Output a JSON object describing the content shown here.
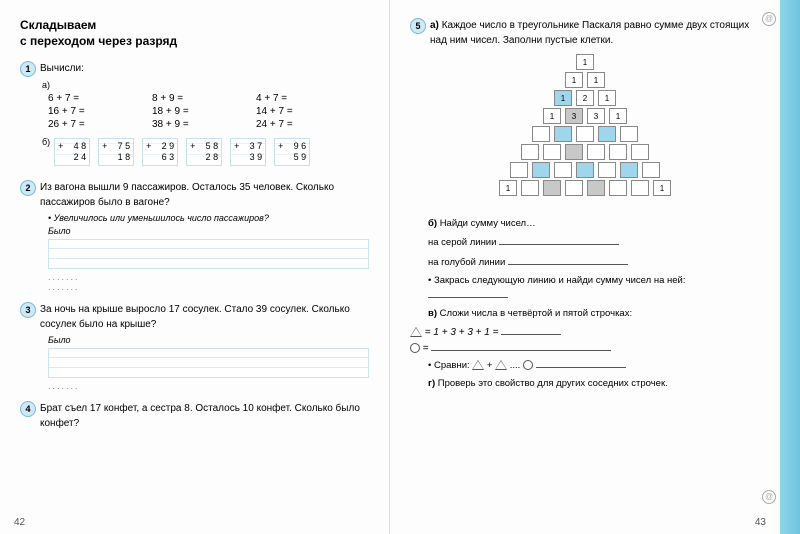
{
  "left": {
    "title_l1": "Складываем",
    "title_l2": "с переходом через разряд",
    "t1": {
      "num": "1",
      "head": "Вычисли:",
      "a_label": "а)",
      "rows": [
        [
          "6 + 7 =",
          "8 + 9 =",
          "4 + 7 ="
        ],
        [
          "16 + 7 =",
          "18 + 9 =",
          "14 + 7 ="
        ],
        [
          "26 + 7 =",
          "38 + 9 =",
          "24 + 7 ="
        ]
      ],
      "b_label": "б)",
      "cols": [
        {
          "top": "4 8",
          "bot": "2 4"
        },
        {
          "top": "7 5",
          "bot": "1 8"
        },
        {
          "top": "2 9",
          "bot": "6 3"
        },
        {
          "top": "5 8",
          "bot": "2 8"
        },
        {
          "top": "3 7",
          "bot": "3 9"
        },
        {
          "top": "9 6",
          "bot": "5 9"
        }
      ]
    },
    "t2": {
      "num": "2",
      "text": "Из вагона вышли 9 пассажиров. Осталось 35 человек. Сколько пассажиров было в вагоне?",
      "hint": "Увеличилось или уменьшилось число пассажиров?",
      "bylo": "Было"
    },
    "t3": {
      "num": "3",
      "text": "За ночь на крыше выросло 17 сосулек. Стало 39 сосулек. Сколько сосулек было на крыше?",
      "bylo": "Было"
    },
    "t4": {
      "num": "4",
      "text": "Брат съел 17 конфет, а сестра 8. Осталось 10 конфет. Сколько было конфет?"
    },
    "pagenum": "42"
  },
  "right": {
    "t5": {
      "num": "5",
      "a_label": "а)",
      "a_text": "Каждое число в треугольнике Паскаля равно сумме двух стоящих над ним чисел. Заполни пустые клетки.",
      "pascal": [
        [
          {
            "v": "1",
            "c": ""
          }
        ],
        [
          {
            "v": "1",
            "c": ""
          },
          {
            "v": "1",
            "c": ""
          }
        ],
        [
          {
            "v": "1",
            "c": "blue"
          },
          {
            "v": "2",
            "c": ""
          },
          {
            "v": "1",
            "c": ""
          }
        ],
        [
          {
            "v": "1",
            "c": ""
          },
          {
            "v": "3",
            "c": "gray"
          },
          {
            "v": "3",
            "c": ""
          },
          {
            "v": "1",
            "c": ""
          }
        ],
        [
          {
            "v": "",
            "c": ""
          },
          {
            "v": "",
            "c": "blue"
          },
          {
            "v": "",
            "c": ""
          },
          {
            "v": "",
            "c": "blue"
          },
          {
            "v": "",
            "c": ""
          }
        ],
        [
          {
            "v": "",
            "c": ""
          },
          {
            "v": "",
            "c": ""
          },
          {
            "v": "",
            "c": "gray"
          },
          {
            "v": "",
            "c": ""
          },
          {
            "v": "",
            "c": ""
          },
          {
            "v": "",
            "c": ""
          }
        ],
        [
          {
            "v": "",
            "c": ""
          },
          {
            "v": "",
            "c": "blue"
          },
          {
            "v": "",
            "c": ""
          },
          {
            "v": "",
            "c": "blue"
          },
          {
            "v": "",
            "c": ""
          },
          {
            "v": "",
            "c": "blue"
          },
          {
            "v": "",
            "c": ""
          }
        ],
        [
          {
            "v": "1",
            "c": ""
          },
          {
            "v": "",
            "c": ""
          },
          {
            "v": "",
            "c": "gray"
          },
          {
            "v": "",
            "c": ""
          },
          {
            "v": "",
            "c": "gray"
          },
          {
            "v": "",
            "c": ""
          },
          {
            "v": "",
            "c": ""
          },
          {
            "v": "1",
            "c": ""
          }
        ]
      ],
      "b_label": "б)",
      "b_text": "Найди сумму чисел…",
      "b_gray": "на серой линии",
      "b_blue": "на голубой линии",
      "b_fill": "Закрась следующую линию и найди сумму чисел на ней:",
      "v_label": "в)",
      "v_text": "Сложи числа в четвёртой и пятой строчках:",
      "v_eq1": "= 1 + 3 + 3 + 1 =",
      "v_eq2": "=",
      "v_cmp": "Сравни:",
      "g_label": "г)",
      "g_text": "Проверь это свойство для других соседних строчек."
    },
    "pagenum": "43"
  }
}
